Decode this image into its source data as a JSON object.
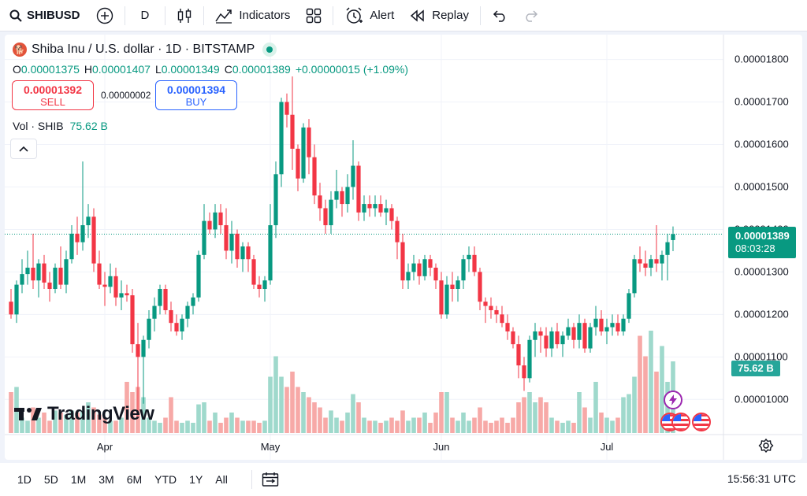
{
  "toolbar": {
    "symbol": "SHIBUSD",
    "interval": "D",
    "indicators_label": "Indicators",
    "alert_label": "Alert",
    "replay_label": "Replay"
  },
  "legend": {
    "title": "Shiba Inu / U.S. dollar · 1D · BITSTAMP",
    "open_key": "O",
    "open": "0.00001375",
    "high_key": "H",
    "high": "0.00001407",
    "low_key": "L",
    "low": "0.00001349",
    "close_key": "C",
    "close": "0.00001389",
    "change": "+0.00000015 (+1.09%)",
    "sell_price": "0.00001392",
    "sell_label": "SELL",
    "spread": "0.00000002",
    "buy_price": "0.00001394",
    "buy_label": "BUY",
    "volume_label": "Vol · SHIB",
    "volume_value": "75.62 B"
  },
  "price_badge": {
    "price": "0.00001389",
    "countdown": "08:03:28"
  },
  "volume_badge": "75.62 B",
  "logo_text": "TradingView",
  "colors": {
    "up": "#089981",
    "down": "#f23645",
    "vol_up": "#9fd9cc",
    "vol_down": "#f7a9a7",
    "accent": "#2962ff"
  },
  "chart_data": {
    "type": "candlestick",
    "y_ticks": [
      "0.00001800",
      "0.00001700",
      "0.00001600",
      "0.00001500",
      "0.00001400",
      "0.00001300",
      "0.00001200",
      "0.00001100",
      "0.00001000"
    ],
    "y_tick_values": [
      18.0,
      17.0,
      16.0,
      15.0,
      14.0,
      13.0,
      12.0,
      11.0,
      10.0
    ],
    "y_unit_scale": "1e-6",
    "ylim": [
      9.32,
      18.4
    ],
    "x_labels": [
      {
        "label": "Apr",
        "index": 17
      },
      {
        "label": "May",
        "index": 47
      },
      {
        "label": "Jun",
        "index": 78
      },
      {
        "label": "Jul",
        "index": 108
      }
    ],
    "last_price": 13.89,
    "candles": [
      {
        "o": 12.3,
        "h": 12.6,
        "l": 11.9,
        "c": 12.0,
        "v": 0.4
      },
      {
        "o": 12.0,
        "h": 12.8,
        "l": 11.8,
        "c": 12.7,
        "v": 0.45
      },
      {
        "o": 12.7,
        "h": 13.3,
        "l": 12.5,
        "c": 12.95,
        "v": 0.15
      },
      {
        "o": 12.95,
        "h": 13.5,
        "l": 12.7,
        "c": 13.1,
        "v": 0.12
      },
      {
        "o": 13.1,
        "h": 13.9,
        "l": 12.6,
        "c": 12.8,
        "v": 0.25
      },
      {
        "o": 12.8,
        "h": 13.3,
        "l": 12.4,
        "c": 13.2,
        "v": 0.15
      },
      {
        "o": 13.2,
        "h": 13.4,
        "l": 12.6,
        "c": 12.75,
        "v": 0.2
      },
      {
        "o": 12.75,
        "h": 13.0,
        "l": 12.3,
        "c": 12.6,
        "v": 0.12
      },
      {
        "o": 12.6,
        "h": 13.2,
        "l": 12.5,
        "c": 13.1,
        "v": 0.22
      },
      {
        "o": 13.1,
        "h": 13.6,
        "l": 12.6,
        "c": 12.7,
        "v": 0.2
      },
      {
        "o": 12.7,
        "h": 13.5,
        "l": 12.5,
        "c": 13.3,
        "v": 0.18
      },
      {
        "o": 13.3,
        "h": 14.1,
        "l": 13.2,
        "c": 13.9,
        "v": 0.22
      },
      {
        "o": 13.9,
        "h": 14.3,
        "l": 13.4,
        "c": 13.7,
        "v": 0.2
      },
      {
        "o": 13.7,
        "h": 15.6,
        "l": 13.5,
        "c": 14.1,
        "v": 0.22
      },
      {
        "o": 14.1,
        "h": 14.6,
        "l": 13.8,
        "c": 14.3,
        "v": 0.3
      },
      {
        "o": 14.3,
        "h": 14.5,
        "l": 13.0,
        "c": 13.2,
        "v": 0.25
      },
      {
        "o": 13.2,
        "h": 13.5,
        "l": 12.6,
        "c": 12.7,
        "v": 0.18
      },
      {
        "o": 12.7,
        "h": 13.0,
        "l": 12.2,
        "c": 12.65,
        "v": 0.15
      },
      {
        "o": 12.65,
        "h": 13.2,
        "l": 12.5,
        "c": 12.9,
        "v": 0.12
      },
      {
        "o": 12.9,
        "h": 13.1,
        "l": 12.2,
        "c": 12.4,
        "v": 0.12
      },
      {
        "o": 12.4,
        "h": 12.8,
        "l": 12.1,
        "c": 12.5,
        "v": 0.15
      },
      {
        "o": 12.5,
        "h": 12.7,
        "l": 12.3,
        "c": 12.45,
        "v": 0.5
      },
      {
        "o": 12.45,
        "h": 12.6,
        "l": 11.1,
        "c": 11.3,
        "v": 0.4
      },
      {
        "o": 11.3,
        "h": 11.8,
        "l": 9.6,
        "c": 11.0,
        "v": 0.45
      },
      {
        "o": 11.0,
        "h": 11.5,
        "l": 9.9,
        "c": 11.4,
        "v": 0.35
      },
      {
        "o": 11.4,
        "h": 12.1,
        "l": 11.2,
        "c": 11.9,
        "v": 0.15
      },
      {
        "o": 11.9,
        "h": 12.4,
        "l": 11.6,
        "c": 12.2,
        "v": 0.12
      },
      {
        "o": 12.2,
        "h": 12.7,
        "l": 12.0,
        "c": 12.6,
        "v": 0.1
      },
      {
        "o": 12.6,
        "h": 12.7,
        "l": 12.0,
        "c": 12.1,
        "v": 0.15
      },
      {
        "o": 12.1,
        "h": 12.3,
        "l": 11.6,
        "c": 11.8,
        "v": 0.35
      },
      {
        "o": 11.8,
        "h": 12.0,
        "l": 11.5,
        "c": 11.6,
        "v": 0.12
      },
      {
        "o": 11.6,
        "h": 12.0,
        "l": 11.4,
        "c": 11.9,
        "v": 0.1
      },
      {
        "o": 11.9,
        "h": 12.3,
        "l": 11.7,
        "c": 12.2,
        "v": 0.12
      },
      {
        "o": 12.2,
        "h": 12.5,
        "l": 12.0,
        "c": 12.4,
        "v": 0.1
      },
      {
        "o": 12.4,
        "h": 13.5,
        "l": 12.3,
        "c": 13.4,
        "v": 0.28
      },
      {
        "o": 13.4,
        "h": 14.6,
        "l": 13.3,
        "c": 14.2,
        "v": 0.3
      },
      {
        "o": 14.2,
        "h": 14.4,
        "l": 13.9,
        "c": 14.0,
        "v": 0.12
      },
      {
        "o": 14.0,
        "h": 14.6,
        "l": 13.8,
        "c": 14.4,
        "v": 0.2
      },
      {
        "o": 14.4,
        "h": 14.6,
        "l": 13.9,
        "c": 14.1,
        "v": 0.1
      },
      {
        "o": 14.1,
        "h": 14.5,
        "l": 13.3,
        "c": 13.5,
        "v": 0.15
      },
      {
        "o": 13.5,
        "h": 14.2,
        "l": 13.2,
        "c": 13.9,
        "v": 0.2
      },
      {
        "o": 13.9,
        "h": 14.0,
        "l": 13.1,
        "c": 13.3,
        "v": 0.15
      },
      {
        "o": 13.3,
        "h": 13.7,
        "l": 13.0,
        "c": 13.6,
        "v": 0.12
      },
      {
        "o": 13.6,
        "h": 13.7,
        "l": 13.0,
        "c": 13.3,
        "v": 0.12
      },
      {
        "o": 13.3,
        "h": 13.4,
        "l": 12.6,
        "c": 12.7,
        "v": 0.12
      },
      {
        "o": 12.7,
        "h": 12.9,
        "l": 12.4,
        "c": 12.6,
        "v": 0.1
      },
      {
        "o": 12.6,
        "h": 12.9,
        "l": 12.3,
        "c": 12.8,
        "v": 0.12
      },
      {
        "o": 12.8,
        "h": 14.6,
        "l": 12.7,
        "c": 14.1,
        "v": 0.55
      },
      {
        "o": 14.1,
        "h": 15.6,
        "l": 13.8,
        "c": 15.3,
        "v": 0.75
      },
      {
        "o": 15.3,
        "h": 17.1,
        "l": 15.0,
        "c": 17.0,
        "v": 0.55
      },
      {
        "o": 17.0,
        "h": 17.2,
        "l": 16.4,
        "c": 16.7,
        "v": 0.45
      },
      {
        "o": 16.7,
        "h": 17.6,
        "l": 15.4,
        "c": 15.9,
        "v": 0.6
      },
      {
        "o": 15.9,
        "h": 16.0,
        "l": 14.9,
        "c": 15.2,
        "v": 0.45
      },
      {
        "o": 15.2,
        "h": 16.5,
        "l": 15.1,
        "c": 16.4,
        "v": 0.4
      },
      {
        "o": 16.4,
        "h": 16.6,
        "l": 15.3,
        "c": 15.7,
        "v": 0.35
      },
      {
        "o": 15.7,
        "h": 16.0,
        "l": 14.6,
        "c": 14.8,
        "v": 0.3
      },
      {
        "o": 14.8,
        "h": 15.1,
        "l": 14.2,
        "c": 14.5,
        "v": 0.25
      },
      {
        "o": 14.5,
        "h": 14.7,
        "l": 13.9,
        "c": 14.1,
        "v": 0.15
      },
      {
        "o": 14.1,
        "h": 14.9,
        "l": 13.9,
        "c": 14.7,
        "v": 0.22
      },
      {
        "o": 14.7,
        "h": 15.4,
        "l": 14.5,
        "c": 14.9,
        "v": 0.15
      },
      {
        "o": 14.9,
        "h": 15.0,
        "l": 14.3,
        "c": 14.6,
        "v": 0.12
      },
      {
        "o": 14.6,
        "h": 15.3,
        "l": 14.4,
        "c": 15.0,
        "v": 0.2
      },
      {
        "o": 15.0,
        "h": 16.1,
        "l": 14.7,
        "c": 15.5,
        "v": 0.38
      },
      {
        "o": 15.5,
        "h": 15.6,
        "l": 14.2,
        "c": 14.4,
        "v": 0.3
      },
      {
        "o": 14.4,
        "h": 14.8,
        "l": 14.2,
        "c": 14.6,
        "v": 0.15
      },
      {
        "o": 14.6,
        "h": 14.8,
        "l": 14.3,
        "c": 14.5,
        "v": 0.12
      },
      {
        "o": 14.5,
        "h": 14.8,
        "l": 14.3,
        "c": 14.6,
        "v": 0.12
      },
      {
        "o": 14.6,
        "h": 14.8,
        "l": 14.3,
        "c": 14.4,
        "v": 0.1
      },
      {
        "o": 14.4,
        "h": 14.7,
        "l": 14.1,
        "c": 14.5,
        "v": 0.12
      },
      {
        "o": 14.5,
        "h": 14.6,
        "l": 14.0,
        "c": 14.2,
        "v": 0.15
      },
      {
        "o": 14.2,
        "h": 14.3,
        "l": 13.3,
        "c": 13.7,
        "v": 0.12
      },
      {
        "o": 13.7,
        "h": 13.9,
        "l": 12.6,
        "c": 12.8,
        "v": 0.22
      },
      {
        "o": 12.8,
        "h": 13.2,
        "l": 12.6,
        "c": 13.0,
        "v": 0.12
      },
      {
        "o": 13.0,
        "h": 13.4,
        "l": 12.8,
        "c": 13.2,
        "v": 0.15
      },
      {
        "o": 13.2,
        "h": 13.3,
        "l": 12.7,
        "c": 12.9,
        "v": 0.15
      },
      {
        "o": 12.9,
        "h": 13.4,
        "l": 12.8,
        "c": 13.3,
        "v": 0.2
      },
      {
        "o": 13.3,
        "h": 13.4,
        "l": 12.9,
        "c": 13.1,
        "v": 0.1
      },
      {
        "o": 13.1,
        "h": 13.2,
        "l": 12.6,
        "c": 12.8,
        "v": 0.2
      },
      {
        "o": 12.8,
        "h": 13.0,
        "l": 11.9,
        "c": 12.0,
        "v": 0.4
      },
      {
        "o": 12.0,
        "h": 12.9,
        "l": 11.9,
        "c": 12.7,
        "v": 0.4
      },
      {
        "o": 12.7,
        "h": 13.0,
        "l": 12.3,
        "c": 12.6,
        "v": 0.15
      },
      {
        "o": 12.6,
        "h": 12.9,
        "l": 12.3,
        "c": 12.8,
        "v": 0.12
      },
      {
        "o": 12.8,
        "h": 13.4,
        "l": 12.6,
        "c": 13.3,
        "v": 0.2
      },
      {
        "o": 13.3,
        "h": 13.6,
        "l": 13.0,
        "c": 13.4,
        "v": 0.12
      },
      {
        "o": 13.4,
        "h": 13.6,
        "l": 12.9,
        "c": 13.0,
        "v": 0.15
      },
      {
        "o": 13.0,
        "h": 13.1,
        "l": 12.1,
        "c": 12.3,
        "v": 0.25
      },
      {
        "o": 12.3,
        "h": 12.4,
        "l": 11.8,
        "c": 12.2,
        "v": 0.12
      },
      {
        "o": 12.2,
        "h": 12.4,
        "l": 11.9,
        "c": 12.1,
        "v": 0.1
      },
      {
        "o": 12.1,
        "h": 12.2,
        "l": 11.8,
        "c": 12.0,
        "v": 0.12
      },
      {
        "o": 12.0,
        "h": 12.2,
        "l": 11.7,
        "c": 11.8,
        "v": 0.15
      },
      {
        "o": 11.8,
        "h": 12.0,
        "l": 11.4,
        "c": 11.6,
        "v": 0.1
      },
      {
        "o": 11.6,
        "h": 11.7,
        "l": 11.2,
        "c": 11.3,
        "v": 0.15
      },
      {
        "o": 11.3,
        "h": 11.5,
        "l": 10.5,
        "c": 10.8,
        "v": 0.3
      },
      {
        "o": 10.8,
        "h": 11.0,
        "l": 10.2,
        "c": 10.5,
        "v": 0.35
      },
      {
        "o": 10.5,
        "h": 11.5,
        "l": 10.4,
        "c": 11.4,
        "v": 0.4
      },
      {
        "o": 11.4,
        "h": 11.8,
        "l": 11.0,
        "c": 11.6,
        "v": 0.3
      },
      {
        "o": 11.6,
        "h": 11.7,
        "l": 11.1,
        "c": 11.5,
        "v": 0.35
      },
      {
        "o": 11.5,
        "h": 11.7,
        "l": 11.0,
        "c": 11.2,
        "v": 0.3
      },
      {
        "o": 11.2,
        "h": 11.7,
        "l": 11.0,
        "c": 11.6,
        "v": 0.15
      },
      {
        "o": 11.6,
        "h": 11.8,
        "l": 11.2,
        "c": 11.3,
        "v": 0.12
      },
      {
        "o": 11.3,
        "h": 11.6,
        "l": 11.0,
        "c": 11.5,
        "v": 0.1
      },
      {
        "o": 11.5,
        "h": 11.9,
        "l": 11.4,
        "c": 11.7,
        "v": 0.12
      },
      {
        "o": 11.7,
        "h": 11.8,
        "l": 11.2,
        "c": 11.4,
        "v": 0.1
      },
      {
        "o": 11.4,
        "h": 12.0,
        "l": 11.2,
        "c": 11.8,
        "v": 0.4
      },
      {
        "o": 11.8,
        "h": 11.9,
        "l": 11.1,
        "c": 11.2,
        "v": 0.25
      },
      {
        "o": 11.2,
        "h": 11.8,
        "l": 11.1,
        "c": 11.7,
        "v": 0.15
      },
      {
        "o": 11.7,
        "h": 12.2,
        "l": 11.5,
        "c": 11.9,
        "v": 0.5
      },
      {
        "o": 11.9,
        "h": 12.1,
        "l": 11.5,
        "c": 11.6,
        "v": 0.2
      },
      {
        "o": 11.6,
        "h": 11.9,
        "l": 11.3,
        "c": 11.7,
        "v": 0.15
      },
      {
        "o": 11.7,
        "h": 12.0,
        "l": 11.5,
        "c": 11.8,
        "v": 0.12
      },
      {
        "o": 11.8,
        "h": 12.0,
        "l": 11.5,
        "c": 11.6,
        "v": 0.15
      },
      {
        "o": 11.6,
        "h": 12.0,
        "l": 11.5,
        "c": 11.9,
        "v": 0.35
      },
      {
        "o": 11.9,
        "h": 12.6,
        "l": 11.8,
        "c": 12.5,
        "v": 0.38
      },
      {
        "o": 12.5,
        "h": 13.4,
        "l": 12.4,
        "c": 13.3,
        "v": 0.55
      },
      {
        "o": 13.3,
        "h": 13.6,
        "l": 13.0,
        "c": 13.2,
        "v": 0.95
      },
      {
        "o": 13.2,
        "h": 13.5,
        "l": 12.9,
        "c": 13.1,
        "v": 0.75
      },
      {
        "o": 13.1,
        "h": 13.4,
        "l": 12.9,
        "c": 13.3,
        "v": 1.0
      },
      {
        "o": 13.3,
        "h": 14.1,
        "l": 13.0,
        "c": 13.2,
        "v": 0.6
      },
      {
        "o": 13.2,
        "h": 13.5,
        "l": 12.8,
        "c": 13.4,
        "v": 0.85
      },
      {
        "o": 13.4,
        "h": 13.9,
        "l": 12.8,
        "c": 13.7,
        "v": 0.5
      },
      {
        "o": 13.75,
        "h": 14.07,
        "l": 13.49,
        "c": 13.89,
        "v": 0.7
      }
    ]
  },
  "range_buttons": [
    "1D",
    "5D",
    "1M",
    "3M",
    "6M",
    "YTD",
    "1Y",
    "All"
  ],
  "clock": "15:56:31 UTC"
}
